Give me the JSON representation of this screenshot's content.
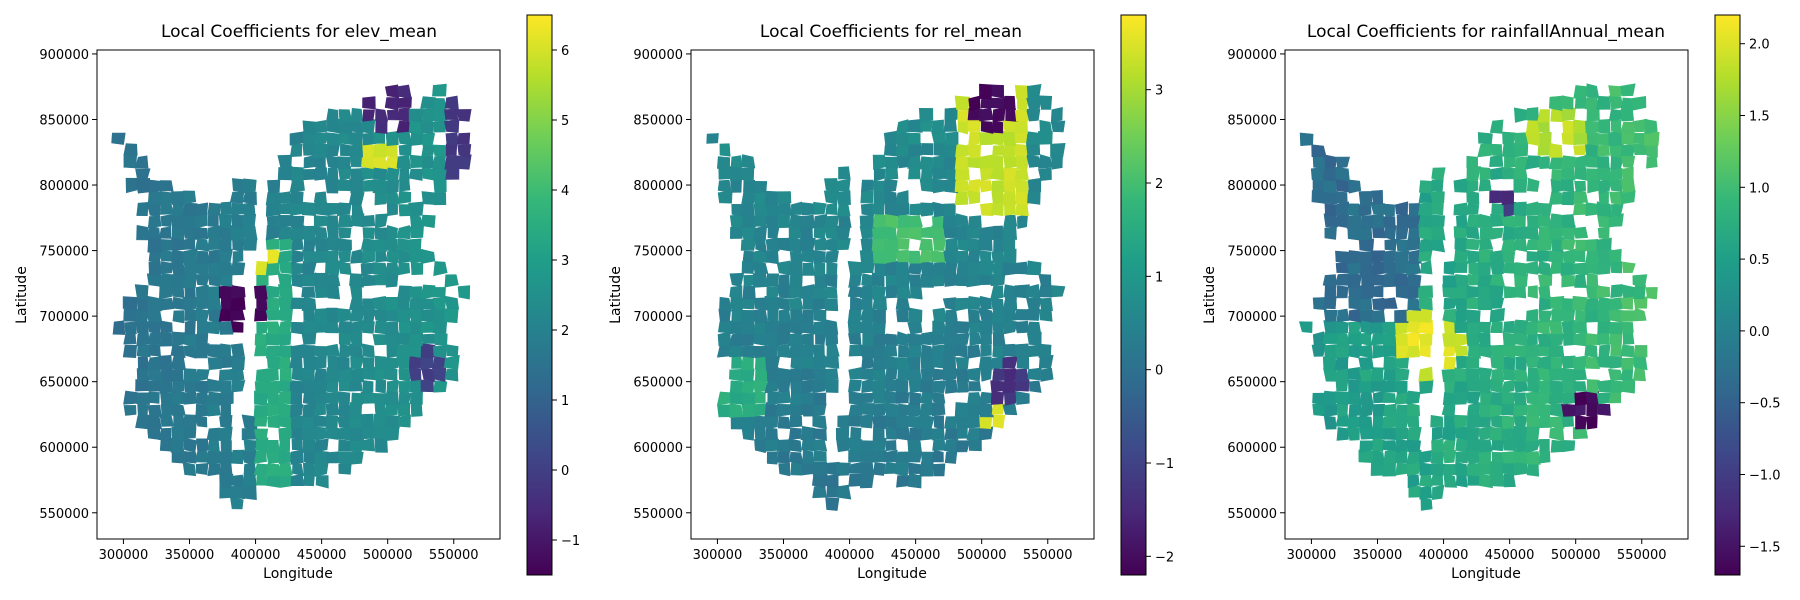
{
  "chart_data": [
    {
      "type": "heatmap",
      "title": "Local Coefficients for elev_mean",
      "xlabel": "Longitude",
      "ylabel": "Latitude",
      "xticks": [
        "300000",
        "350000",
        "400000",
        "450000",
        "500000",
        "550000"
      ],
      "yticks": [
        "550000",
        "600000",
        "650000",
        "700000",
        "750000",
        "800000",
        "850000",
        "900000"
      ],
      "xlim": [
        280000,
        585000
      ],
      "ylim": [
        530000,
        903000
      ],
      "colorbar": {
        "colormap": "viridis",
        "range": [
          -1.5,
          6.5
        ],
        "ticks": [
          "6",
          "5",
          "4",
          "3",
          "2",
          "1",
          "0",
          "−1"
        ]
      }
    },
    {
      "type": "heatmap",
      "title": "Local Coefficients for rel_mean",
      "xlabel": "Longitude",
      "ylabel": "Latitude",
      "xticks": [
        "300000",
        "350000",
        "400000",
        "450000",
        "500000",
        "550000"
      ],
      "yticks": [
        "550000",
        "600000",
        "650000",
        "700000",
        "750000",
        "800000",
        "850000",
        "900000"
      ],
      "xlim": [
        280000,
        585000
      ],
      "ylim": [
        530000,
        903000
      ],
      "colorbar": {
        "colormap": "viridis",
        "range": [
          -2.2,
          3.8
        ],
        "ticks": [
          "3",
          "2",
          "1",
          "0",
          "−1",
          "−2"
        ]
      }
    },
    {
      "type": "heatmap",
      "title": "Local Coefficients for rainfallAnnual_mean",
      "xlabel": "Longitude",
      "ylabel": "Latitude",
      "xticks": [
        "300000",
        "350000",
        "400000",
        "450000",
        "500000",
        "550000"
      ],
      "yticks": [
        "550000",
        "600000",
        "650000",
        "700000",
        "750000",
        "800000",
        "850000",
        "900000"
      ],
      "xlim": [
        280000,
        585000
      ],
      "ylim": [
        530000,
        903000
      ],
      "colorbar": {
        "colormap": "viridis",
        "range": [
          -1.7,
          2.2
        ],
        "ticks": [
          "2.0",
          "1.5",
          "1.0",
          "0.5",
          "0.0",
          "−0.5",
          "−1.0",
          "−1.5"
        ]
      }
    }
  ],
  "colors": {
    "viridis_stops": [
      "#440154",
      "#482878",
      "#3e4989",
      "#31688e",
      "#26828e",
      "#1f9e89",
      "#35b779",
      "#6ece58",
      "#b5de2b",
      "#fde725"
    ]
  }
}
